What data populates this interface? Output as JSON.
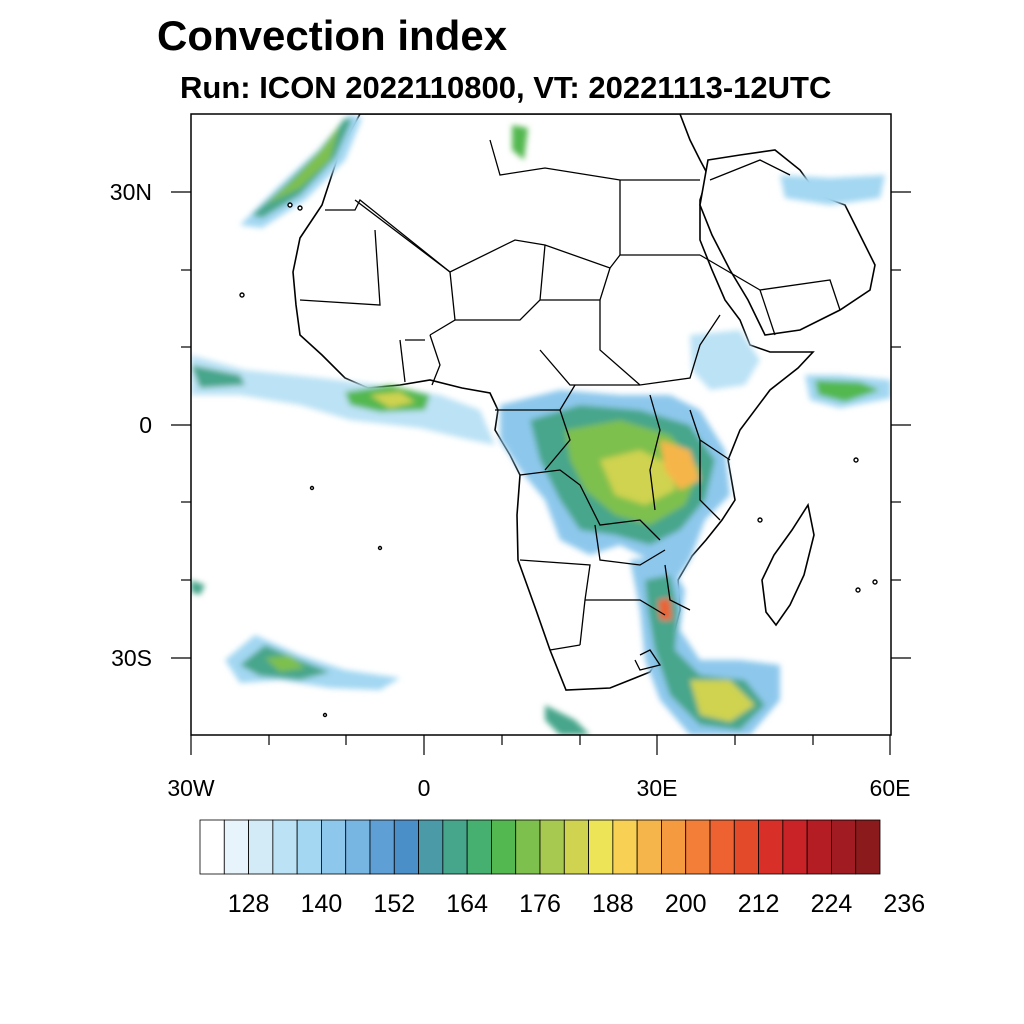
{
  "title": "Convection index",
  "subtitle": "Run: ICON 2022110800,  VT: 20221113-12UTC",
  "map": {
    "lon_range": [
      -30,
      60
    ],
    "lat_range": [
      -40,
      40
    ],
    "x_ticks": [
      {
        "lon": -30,
        "label": "30W"
      },
      {
        "lon": 0,
        "label": "0"
      },
      {
        "lon": 30,
        "label": "30E"
      },
      {
        "lon": 60,
        "label": "60E"
      }
    ],
    "y_ticks": [
      {
        "lat": 30,
        "label": "30N"
      },
      {
        "lat": 0,
        "label": "0"
      },
      {
        "lat": -30,
        "label": "30S"
      }
    ]
  },
  "colorbar": {
    "colors": [
      "#ffffff",
      "#e8f4fb",
      "#d2ebf7",
      "#bbe2f5",
      "#a3d7f2",
      "#8dc8ec",
      "#77b5e2",
      "#5e9fd6",
      "#4b8fc8",
      "#4a9aa8",
      "#46a68b",
      "#45b06f",
      "#52b84f",
      "#7ec04d",
      "#a8c950",
      "#cfd34f",
      "#eee458",
      "#f8d053",
      "#f6b54a",
      "#f69a40",
      "#f27e38",
      "#ed6230",
      "#e24a2a",
      "#d83028",
      "#c92227",
      "#b51d25",
      "#a01b22",
      "#8a1a1c"
    ],
    "labels": [
      "128",
      "140",
      "152",
      "164",
      "176",
      "188",
      "200",
      "212",
      "224",
      "236"
    ]
  }
}
